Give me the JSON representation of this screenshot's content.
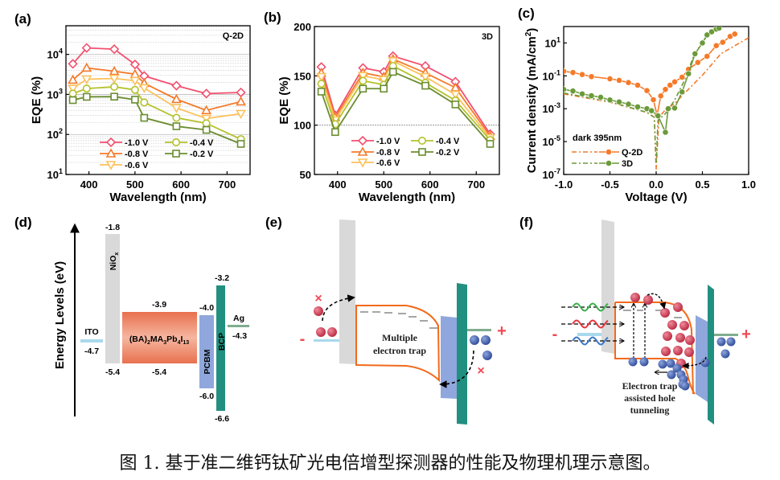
{
  "panel_labels": [
    "(a)",
    "(b)",
    "(c)",
    "(d)",
    "(e)",
    "(f)"
  ],
  "caption": "图 1. 基于准二维钙钛矿光电倍增型探测器的性能及物理机理示意图。",
  "chart_data": [
    {
      "id": "a",
      "type": "line",
      "annotation": "Q-2D",
      "xlabel": "Wavelength (nm)",
      "ylabel": "EQE (%)",
      "xlim": [
        350,
        750
      ],
      "ylim": [
        10,
        52000
      ],
      "yscale": "log",
      "grid": true,
      "legend_placement": "bottom-center",
      "xticks": [
        400,
        500,
        600,
        700
      ],
      "yticks": [
        10,
        100,
        1000,
        10000
      ],
      "ytick_labels": [
        [
          "10",
          "1"
        ],
        [
          "10",
          "2"
        ],
        [
          "10",
          "3"
        ],
        [
          "10",
          "4"
        ]
      ],
      "x": [
        365,
        395,
        455,
        500,
        520,
        590,
        655,
        730
      ],
      "series": [
        {
          "name": "-1.0 V",
          "color": "#f2506f",
          "marker": "diamond",
          "values": [
            5800,
            14500,
            13500,
            5600,
            2900,
            1650,
            1050,
            1120
          ]
        },
        {
          "name": "-0.8 V",
          "color": "#f47a2a",
          "marker": "triangle-up",
          "values": [
            2300,
            4600,
            3800,
            3200,
            1900,
            760,
            400,
            660
          ]
        },
        {
          "name": "-0.6 V",
          "color": "#fcc15c",
          "marker": "triangle-down",
          "values": [
            1400,
            2400,
            2500,
            2200,
            1450,
            460,
            250,
            330
          ]
        },
        {
          "name": "-0.4 V",
          "color": "#b4c22c",
          "marker": "circle",
          "values": [
            1050,
            1400,
            1550,
            1300,
            630,
            260,
            190,
            76
          ]
        },
        {
          "name": "-0.2 V",
          "color": "#6b8d30",
          "marker": "square",
          "values": [
            720,
            870,
            880,
            740,
            260,
            160,
            130,
            58
          ]
        }
      ]
    },
    {
      "id": "b",
      "type": "line",
      "annotation": "3D",
      "xlabel": "Wavelength (nm)",
      "ylabel": "EQE (%)",
      "xlim": [
        350,
        750
      ],
      "ylim": [
        50,
        200
      ],
      "yscale": "linear",
      "reference_line": 100,
      "legend_placement": "bottom-center",
      "xticks": [
        400,
        500,
        600,
        700
      ],
      "yticks": [
        50,
        100,
        150,
        200
      ],
      "x": [
        365,
        395,
        455,
        500,
        520,
        590,
        655,
        730
      ],
      "series": [
        {
          "name": "-1.0 V",
          "color": "#f2506f",
          "marker": "diamond",
          "values": [
            159,
            110,
            158,
            154,
            170,
            160,
            144,
            91
          ]
        },
        {
          "name": "-0.8 V",
          "color": "#f47a2a",
          "marker": "triangle-up",
          "values": [
            153,
            108,
            153,
            149,
            167,
            153,
            138,
            89
          ]
        },
        {
          "name": "-0.6 V",
          "color": "#fcc15c",
          "marker": "triangle-down",
          "values": [
            149,
            105,
            150,
            146,
            165,
            149,
            131,
            87
          ]
        },
        {
          "name": "-0.4 V",
          "color": "#b4c22c",
          "marker": "circle",
          "values": [
            142,
            101,
            145,
            141,
            160,
            143,
            125,
            85
          ]
        },
        {
          "name": "-0.2 V",
          "color": "#6b8d30",
          "marker": "square",
          "values": [
            134,
            93,
            137,
            137,
            154,
            140,
            121,
            81
          ]
        }
      ]
    },
    {
      "id": "c",
      "type": "line",
      "xlabel": "Voltage (V)",
      "ylabel": "Current density (mA/cm",
      "ylabel_sup": "2",
      "ylabel_end": ")",
      "xlim": [
        -1.0,
        1.0
      ],
      "ylim": [
        1e-07,
        100
      ],
      "yscale": "log",
      "legend_title": "dark  395nm",
      "legend_placement": "bottom-left",
      "xticks": [
        -1.0,
        -0.5,
        0.0,
        0.5,
        1.0
      ],
      "xtick_labels": [
        "-1.0",
        "-0.5",
        "0.0",
        "0.5",
        "1.0"
      ],
      "yticks": [
        1e-07,
        1e-05,
        0.001,
        0.1,
        10
      ],
      "ytick_labels": [
        [
          "10",
          "-7"
        ],
        [
          "10",
          "-5"
        ],
        [
          "10",
          "-3"
        ],
        [
          "10",
          "-1"
        ],
        [
          "10",
          "1"
        ]
      ],
      "series": [
        {
          "name": "Q-2D",
          "condition": "dark",
          "color": "#f47a2a",
          "style": "dash-dot",
          "points": [
            [
              -1,
              0.008
            ],
            [
              -0.5,
              0.0025
            ],
            [
              -0.1,
              0.0006
            ],
            [
              -0.02,
              0.0003
            ],
            [
              0,
              2e-07
            ],
            [
              0.03,
              0.0003
            ],
            [
              0.1,
              0.00085
            ],
            [
              0.2,
              0.0021
            ],
            [
              0.3,
              0.008
            ],
            [
              0.5,
              0.11
            ],
            [
              0.7,
              2.2
            ],
            [
              1.0,
              21
            ]
          ]
        },
        {
          "name": "3D",
          "condition": "dark",
          "color": "#6b9a3a",
          "style": "dash-dot",
          "points": [
            [
              -1,
              0.009
            ],
            [
              -0.5,
              0.0027
            ],
            [
              -0.1,
              0.0006
            ],
            [
              -0.02,
              0.0003
            ],
            [
              0,
              5e-07
            ],
            [
              0.02,
              0.0002
            ],
            [
              0.1,
              0.0005
            ],
            [
              0.2,
              0.0033
            ],
            [
              0.3,
              0.045
            ],
            [
              0.4,
              1.3
            ],
            [
              0.5,
              12
            ],
            [
              0.6,
              50
            ],
            [
              0.7,
              90
            ]
          ]
        },
        {
          "name": "Q-2D",
          "condition": "395nm",
          "color": "#f47a2a",
          "style": "solid-circle",
          "points": [
            [
              -1,
              0.19
            ],
            [
              -0.9,
              0.16
            ],
            [
              -0.8,
              0.12
            ],
            [
              -0.7,
              0.09
            ],
            [
              -0.5,
              0.066
            ],
            [
              -0.4,
              0.053
            ],
            [
              -0.3,
              0.039
            ],
            [
              -0.2,
              0.027
            ],
            [
              -0.1,
              0.0126
            ],
            [
              -0.03,
              0.0035
            ],
            [
              0.01,
              0.0004
            ],
            [
              0.05,
              0.006
            ],
            [
              0.1,
              0.015
            ],
            [
              0.15,
              0.027
            ],
            [
              0.2,
              0.043
            ],
            [
              0.28,
              0.083
            ],
            [
              0.35,
              0.25
            ],
            [
              0.45,
              0.65
            ],
            [
              0.55,
              1.55
            ],
            [
              0.65,
              6.9
            ],
            [
              0.72,
              11
            ],
            [
              0.8,
              25
            ],
            [
              0.85,
              35
            ]
          ]
        },
        {
          "name": "3D",
          "condition": "395nm",
          "color": "#6b9a3a",
          "style": "solid-circle",
          "points": [
            [
              -1,
              0.015
            ],
            [
              -0.9,
              0.012
            ],
            [
              -0.8,
              0.008
            ],
            [
              -0.7,
              0.0062
            ],
            [
              -0.6,
              0.005
            ],
            [
              -0.5,
              0.0034
            ],
            [
              -0.4,
              0.0026
            ],
            [
              -0.3,
              0.0019
            ],
            [
              -0.2,
              0.0013
            ],
            [
              -0.1,
              0.001
            ],
            [
              -0.05,
              0.00076
            ],
            [
              0.02,
              0.00037
            ],
            [
              0.1,
              3.7e-05
            ],
            [
              0.13,
              0.001
            ],
            [
              0.2,
              0.0011
            ],
            [
              0.28,
              0.0105
            ],
            [
              0.35,
              0.135
            ],
            [
              0.42,
              2.2
            ],
            [
              0.5,
              10
            ],
            [
              0.55,
              31
            ],
            [
              0.6,
              48
            ],
            [
              0.65,
              70
            ],
            [
              0.68,
              80
            ]
          ]
        }
      ]
    }
  ],
  "energy_diagram": {
    "ylabel": "Energy Levels (eV)",
    "ito": {
      "name": "ITO",
      "level": "-4.7",
      "color": "#a9d9ec"
    },
    "nio": {
      "name": "NiO",
      "sub": "x",
      "top": "-1.8",
      "bottom": "-5.4",
      "color": "#d9d9d9"
    },
    "perovskite": {
      "name_parts": [
        "(BA)",
        "2",
        "MA",
        "3",
        "Pb",
        "4",
        "I",
        "13"
      ],
      "top": "-3.9",
      "bottom": "-5.4",
      "color": "#e8704e"
    },
    "pcbm": {
      "name": "PCBM",
      "top": "-4.0",
      "bottom": "-6.0",
      "color": "#8fa7dc"
    },
    "bcp": {
      "name": "BCP",
      "top": "-3.2",
      "bottom": "-6.6",
      "color": "#229080"
    },
    "ag": {
      "name": "Ag",
      "level": "-4.3",
      "color": "#7fae8f"
    }
  },
  "mechanism_e": {
    "label_lines": [
      "Multiple",
      "electron trap"
    ],
    "minus": "-",
    "plus": "+",
    "blocked": "×",
    "electron": "-",
    "hole": "+"
  },
  "mechanism_f": {
    "label_lines": [
      "Electron trap",
      "assisted hole",
      "tunneling"
    ],
    "minus": "-",
    "plus": "+",
    "light_colors": [
      "#3cb04a",
      "#e8343c",
      "#3a78c8"
    ]
  }
}
